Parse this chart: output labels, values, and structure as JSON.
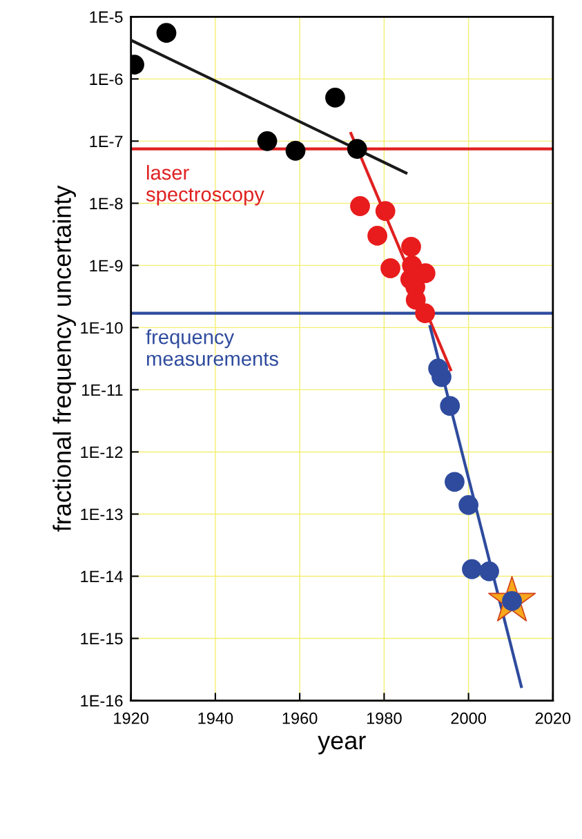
{
  "chart_data": {
    "type": "scatter",
    "xlabel": "year",
    "ylabel": "fractional frequency uncertainty",
    "log": "y",
    "grid": true,
    "marker": "circle",
    "xlim": [
      1920,
      2020
    ],
    "xticks": [
      1920,
      1940,
      1960,
      1980,
      2000,
      2020
    ],
    "ylim": [
      1e-16,
      1e-05
    ],
    "yticks": [
      {
        "value": 1e-16,
        "label": "1E-16"
      },
      {
        "value": 1e-15,
        "label": "1E-15"
      },
      {
        "value": 1e-14,
        "label": "1E-14"
      },
      {
        "value": 1e-13,
        "label": "1E-13"
      },
      {
        "value": 1e-12,
        "label": "1E-12"
      },
      {
        "value": 1e-11,
        "label": "1E-11"
      },
      {
        "value": 1e-10,
        "label": "1E-10"
      },
      {
        "value": 1e-09,
        "label": "1E-9"
      },
      {
        "value": 1e-08,
        "label": "1E-8"
      },
      {
        "value": 1e-07,
        "label": "1E-7"
      },
      {
        "value": 1e-06,
        "label": "1E-6"
      },
      {
        "value": 1e-05,
        "label": "1E-5"
      }
    ],
    "ref_lines": [
      {
        "axis": "y",
        "value": 7.5e-08,
        "label": "laser\nspectroscopy",
        "color": "#e02020"
      },
      {
        "axis": "y",
        "value": 1.7e-10,
        "label": "frequency\nmeasurements",
        "color": "#2e4b9e"
      }
    ],
    "series": [
      {
        "type": "line",
        "marker": "none",
        "color": "#1a1a1a",
        "x": [
          1920,
          1985.5
        ],
        "values": [
          4.2e-06,
          3e-08
        ]
      },
      {
        "type": "line",
        "marker": "none",
        "color": "#e02020",
        "x": [
          1972,
          1995.9
        ],
        "values": [
          1.4e-07,
          2e-11
        ]
      },
      {
        "type": "line",
        "marker": "none",
        "color": "#2e4b9e",
        "x": [
          1990.8,
          2012.6
        ],
        "values": [
          1.1e-10,
          1.6e-16
        ]
      },
      {
        "color": "#000000",
        "x": [
          1920.8,
          1928.4,
          1952.3,
          1959,
          1968.4,
          1973.6
        ],
        "values": [
          1.7e-06,
          5.5e-06,
          1e-07,
          7e-08,
          5e-07,
          7.5e-08
        ]
      },
      {
        "color": "#e81c1c",
        "x": [
          1974.3,
          1980.3,
          1978.4,
          1981.5,
          1986.4,
          1986.6,
          1986.2,
          1987.4,
          1989.8,
          1987.5,
          1989.7
        ],
        "values": [
          9e-09,
          7.5e-09,
          3e-09,
          9e-10,
          2e-09,
          1e-09,
          6e-10,
          4.5e-10,
          7.5e-10,
          2.8e-10,
          1.7e-10
        ]
      },
      {
        "marker": "star",
        "color": "#f7a81b",
        "x": [
          2010.3
        ],
        "values": [
          4e-15
        ]
      },
      {
        "color": "#2e4b9e",
        "x": [
          1992.8,
          1993.6,
          1995.6,
          1996.7,
          2000,
          2000.8,
          2004.9,
          2010.3
        ],
        "values": [
          2.2e-11,
          1.6e-11,
          5.5e-12,
          3.3e-13,
          1.4e-13,
          1.3e-14,
          1.2e-14,
          4e-15
        ]
      }
    ]
  }
}
